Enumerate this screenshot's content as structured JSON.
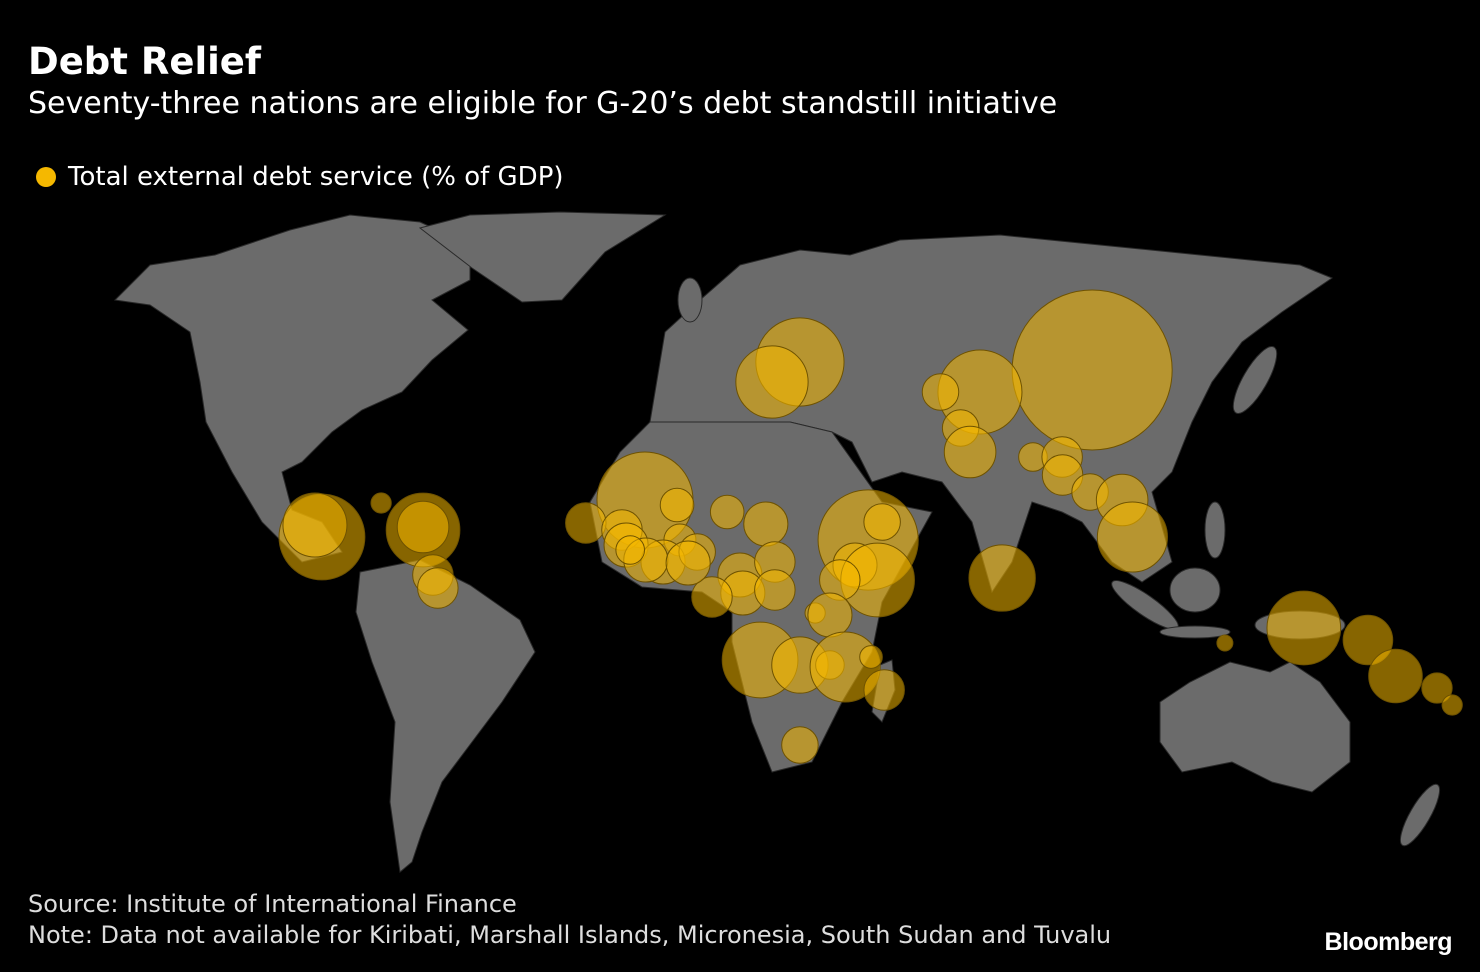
{
  "title": "Debt Relief",
  "subtitle": "Seventy-three nations are eligible for G-20’s debt standstill initiative",
  "legend": "Total external debt service (% of GDP)",
  "source": "Source: Institute of International Finance",
  "note": "Note: Data not available for Kiribati, Marshall Islands, Micronesia, South Sudan and Tuvalu",
  "logo": "Bloomberg",
  "bubbles": [
    {
      "lon": 103.2,
      "lat": 47.0,
      "value": 25
    },
    {
      "lon": 75.9,
      "lat": 42.6,
      "value": 6.9
    },
    {
      "lon": 71.2,
      "lat": 35.4,
      "value": 1.3
    },
    {
      "lon": 66.3,
      "lat": 42.6,
      "value": 1.3
    },
    {
      "lon": 73.5,
      "lat": 30.6,
      "value": 2.6
    },
    {
      "lon": 88.8,
      "lat": 29.6,
      "value": 0.8
    },
    {
      "lon": 95.9,
      "lat": 29.6,
      "value": 1.6
    },
    {
      "lon": 96.0,
      "lat": 26.0,
      "value": 1.6
    },
    {
      "lon": 102.7,
      "lat": 22.6,
      "value": 1.3
    },
    {
      "lon": 110.5,
      "lat": 21.0,
      "value": 2.6
    },
    {
      "lon": 113.0,
      "lat": 13.6,
      "value": 4.8
    },
    {
      "lon": 81.3,
      "lat": 5.4,
      "value": 4.3
    },
    {
      "lon": 32.1,
      "lat": 48.6,
      "value": 7.6
    },
    {
      "lon": 25.3,
      "lat": 44.6,
      "value": 5.1
    },
    {
      "lon": -84.2,
      "lat": 13.6,
      "value": 7.2
    },
    {
      "lon": -85.9,
      "lat": 16.0,
      "value": 4.0
    },
    {
      "lon": -69.8,
      "lat": 20.4,
      "value": 0.4
    },
    {
      "lon": -59.6,
      "lat": 15.0,
      "value": 5.3
    },
    {
      "lon": -59.6,
      "lat": 15.6,
      "value": 2.6
    },
    {
      "lon": -57.2,
      "lat": 6.0,
      "value": 1.6
    },
    {
      "lon": -56.0,
      "lat": 3.4,
      "value": 1.6
    },
    {
      "lon": -5.6,
      "lat": 21.0,
      "value": 9.0
    },
    {
      "lon": -20.0,
      "lat": 16.4,
      "value": 1.6
    },
    {
      "lon": -11.2,
      "lat": 15.0,
      "value": 1.6
    },
    {
      "lon": -10.2,
      "lat": 12.0,
      "value": 1.9
    },
    {
      "lon": 2.2,
      "lat": 20.0,
      "value": 1.1
    },
    {
      "lon": 14.4,
      "lat": 18.6,
      "value": 1.1
    },
    {
      "lon": 23.8,
      "lat": 16.2,
      "value": 1.9
    },
    {
      "lon": 2.9,
      "lat": 13.0,
      "value": 1.0
    },
    {
      "lon": -1.2,
      "lat": 8.6,
      "value": 1.9
    },
    {
      "lon": -5.4,
      "lat": 9.0,
      "value": 1.9
    },
    {
      "lon": 7.1,
      "lat": 10.6,
      "value": 1.3
    },
    {
      "lon": 17.5,
      "lat": 6.0,
      "value": 1.9
    },
    {
      "lon": 26.0,
      "lat": 8.6,
      "value": 1.6
    },
    {
      "lon": 48.7,
      "lat": 13.0,
      "value": 9.8
    },
    {
      "lon": 52.1,
      "lat": 16.6,
      "value": 1.3
    },
    {
      "lon": 45.5,
      "lat": 8.0,
      "value": 1.9
    },
    {
      "lon": 51.0,
      "lat": 5.0,
      "value": 5.3
    },
    {
      "lon": 41.8,
      "lat": 5.0,
      "value": 1.6
    },
    {
      "lon": 35.8,
      "lat": -1.6,
      "value": 0.4
    },
    {
      "lon": 18.2,
      "lat": 2.4,
      "value": 1.9
    },
    {
      "lon": 26.0,
      "lat": 3.0,
      "value": 1.6
    },
    {
      "lon": 39.4,
      "lat": -2.0,
      "value": 1.9
    },
    {
      "lon": 22.4,
      "lat": -11.0,
      "value": 5.6
    },
    {
      "lon": 32.1,
      "lat": -12.0,
      "value": 3.1
    },
    {
      "lon": 39.4,
      "lat": -12.0,
      "value": 0.8
    },
    {
      "lon": 43.1,
      "lat": -12.4,
      "value": 4.8
    },
    {
      "lon": 52.6,
      "lat": -17.0,
      "value": 1.6
    },
    {
      "lon": 49.4,
      "lat": -10.4,
      "value": 0.5
    },
    {
      "lon": 32.1,
      "lat": -28.0,
      "value": 1.3
    },
    {
      "lon": 10.7,
      "lat": 1.6,
      "value": 1.6
    },
    {
      "lon": -9.2,
      "lat": 11.0,
      "value": 0.8
    },
    {
      "lon": 4.9,
      "lat": 8.4,
      "value": 1.9
    },
    {
      "lon": 154.7,
      "lat": -4.6,
      "value": 5.3
    },
    {
      "lon": 170.3,
      "lat": -7.0,
      "value": 2.4
    },
    {
      "lon": 177.0,
      "lat": -14.2,
      "value": 2.8
    },
    {
      "lon": 187.1,
      "lat": -16.6,
      "value": 0.9
    },
    {
      "lon": 190.8,
      "lat": -20.0,
      "value": 0.4
    },
    {
      "lon": 135.5,
      "lat": -7.6,
      "value": 0.25
    }
  ]
}
